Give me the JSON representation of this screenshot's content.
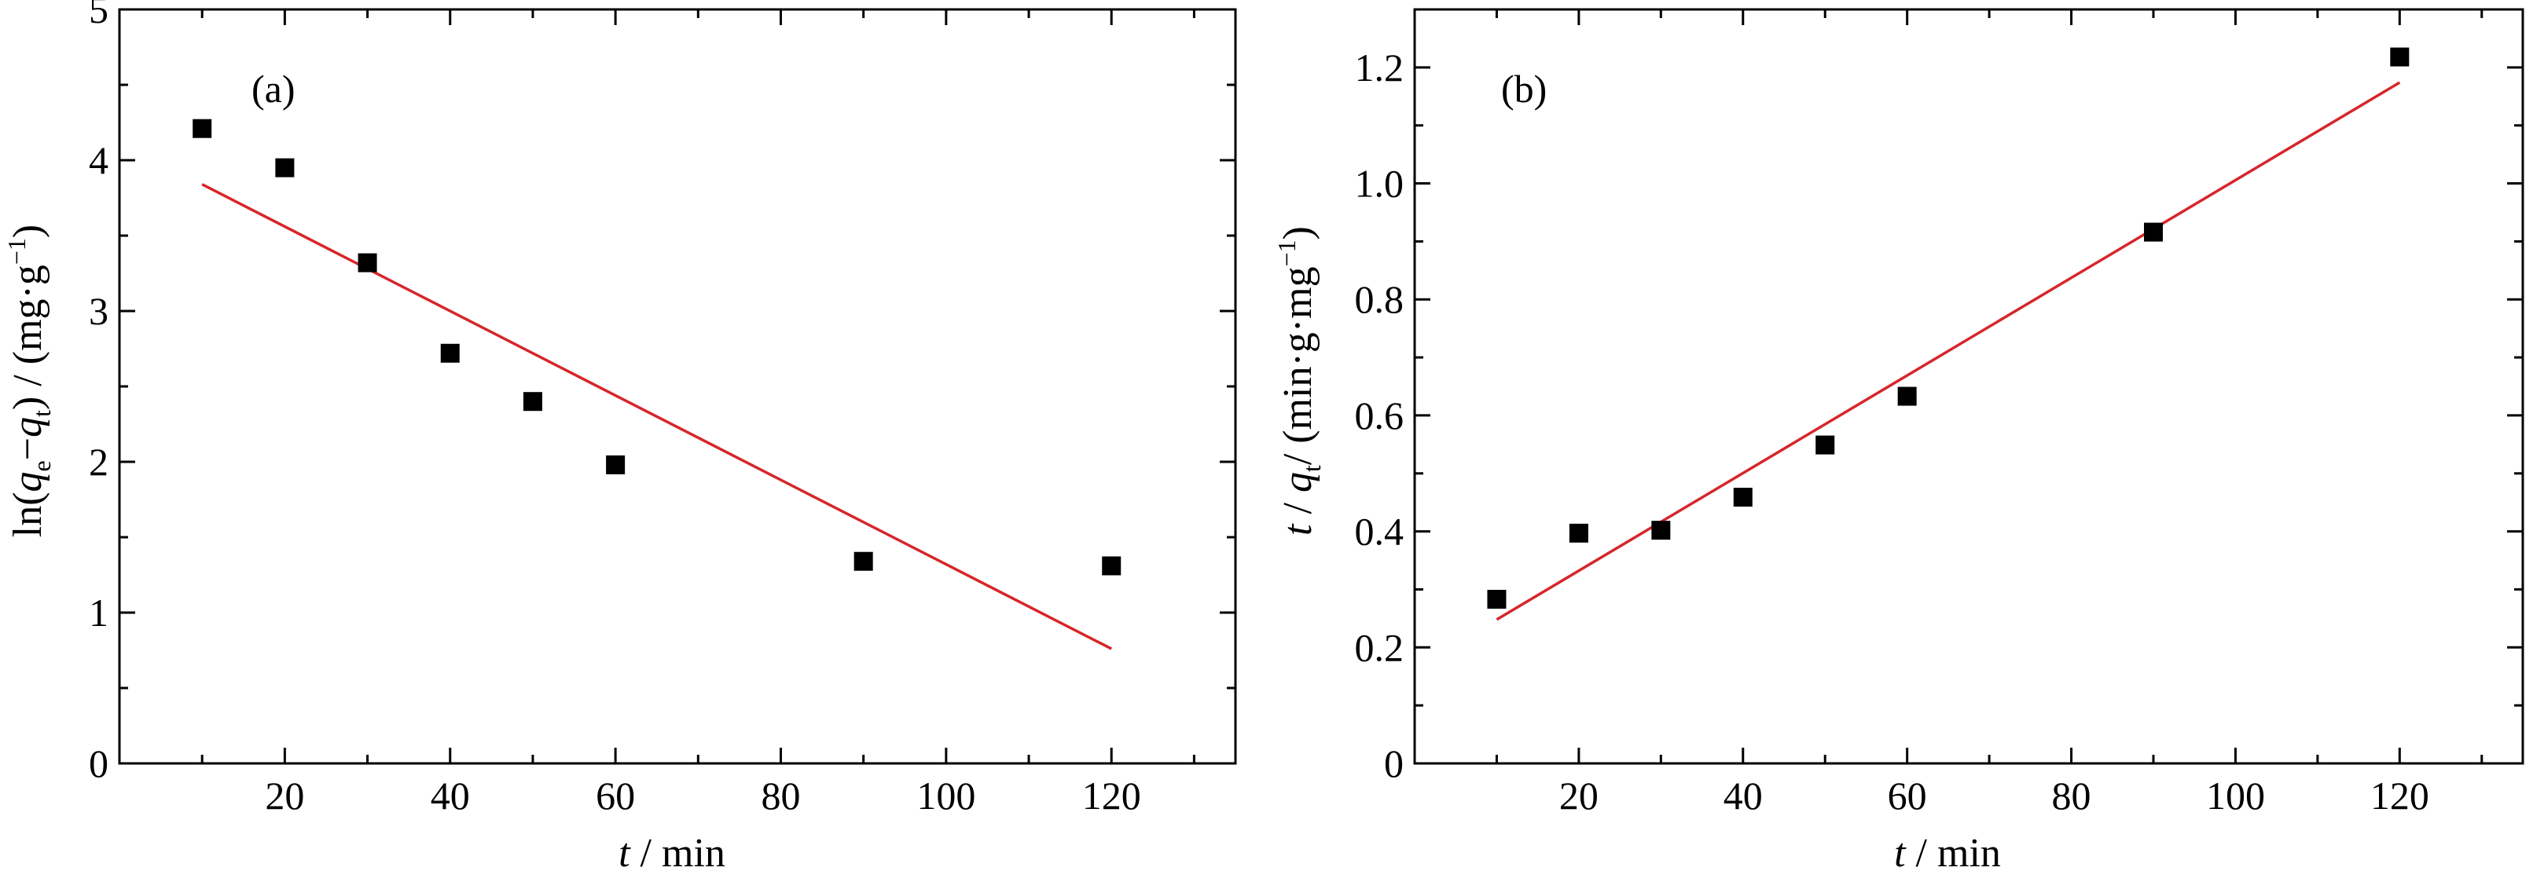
{
  "colors": {
    "axis": "#000000",
    "marker": "#000000",
    "fit_line": "#d6262b",
    "background": "#ffffff"
  },
  "chart_data": [
    {
      "panel": "(a)",
      "type": "scatter",
      "xlabel_parts": [
        "t",
        " / min"
      ],
      "ylabel_parts": [
        "ln(",
        "q",
        "e",
        "−",
        "q",
        "t",
        ") / (mg·g",
        "−1",
        ")"
      ],
      "xlim": [
        0,
        135
      ],
      "ylim": [
        0,
        5
      ],
      "xticks": [
        20,
        40,
        60,
        80,
        100,
        120
      ],
      "xtick_labels": [
        "20",
        "40",
        "60",
        "80",
        "100",
        "120"
      ],
      "yticks": [
        0,
        1,
        2,
        3,
        4,
        5
      ],
      "ytick_labels": [
        "0",
        "1",
        "2",
        "3",
        "4",
        "5"
      ],
      "x": [
        10,
        20,
        30,
        40,
        50,
        60,
        90,
        120
      ],
      "y": [
        4.21,
        3.95,
        3.32,
        2.72,
        2.4,
        1.98,
        1.34,
        1.31
      ],
      "fit": {
        "x": [
          10,
          120
        ],
        "y": [
          3.84,
          0.76
        ]
      },
      "grid": false,
      "legend": "none"
    },
    {
      "panel": "(b)",
      "type": "scatter",
      "xlabel_parts": [
        "t",
        " / min"
      ],
      "ylabel_parts": [
        "t",
        " / ",
        "q",
        "t",
        "/ (min·g·mg",
        "−1",
        ")"
      ],
      "xlim": [
        0,
        135
      ],
      "ylim": [
        0,
        1.3
      ],
      "xticks": [
        20,
        40,
        60,
        80,
        100,
        120
      ],
      "xtick_labels": [
        "20",
        "40",
        "60",
        "80",
        "100",
        "120"
      ],
      "yticks": [
        0,
        0.2,
        0.4,
        0.6,
        0.8,
        1.0,
        1.2
      ],
      "ytick_labels": [
        "0",
        "0.2",
        "0.4",
        "0.6",
        "0.8",
        "1.0",
        "1.2"
      ],
      "x": [
        10,
        20,
        30,
        40,
        50,
        60,
        90,
        120
      ],
      "y": [
        0.283,
        0.397,
        0.402,
        0.459,
        0.549,
        0.633,
        0.916,
        1.218
      ],
      "fit": {
        "x": [
          10,
          120
        ],
        "y": [
          0.248,
          1.174
        ]
      },
      "grid": false,
      "legend": "none"
    }
  ]
}
